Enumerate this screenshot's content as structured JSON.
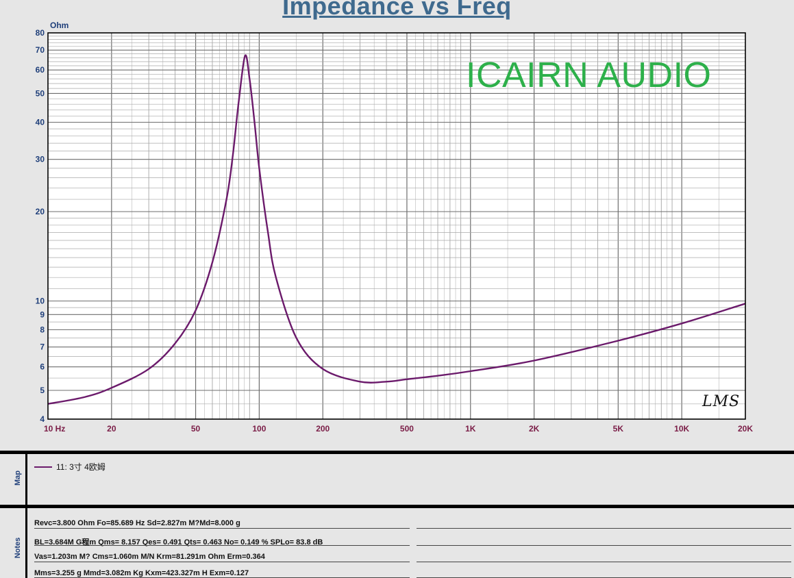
{
  "chart_data": {
    "type": "line",
    "title": "Impedance vs Freq",
    "ylabel": "Ohm",
    "xscale": "log",
    "yscale": "log",
    "xlim": [
      10,
      20000
    ],
    "ylim": [
      4,
      80
    ],
    "grid": true,
    "x_ticks": [
      {
        "value": 10,
        "label": "10  Hz"
      },
      {
        "value": 20,
        "label": "20"
      },
      {
        "value": 50,
        "label": "50"
      },
      {
        "value": 100,
        "label": "100"
      },
      {
        "value": 200,
        "label": "200"
      },
      {
        "value": 500,
        "label": "500"
      },
      {
        "value": 1000,
        "label": "1K"
      },
      {
        "value": 2000,
        "label": "2K"
      },
      {
        "value": 5000,
        "label": "5K"
      },
      {
        "value": 10000,
        "label": "10K"
      },
      {
        "value": 20000,
        "label": "20K"
      }
    ],
    "y_ticks": [
      {
        "value": 80,
        "label": "80"
      },
      {
        "value": 70,
        "label": "70"
      },
      {
        "value": 60,
        "label": "60"
      },
      {
        "value": 50,
        "label": "50"
      },
      {
        "value": 40,
        "label": "40"
      },
      {
        "value": 30,
        "label": "30"
      },
      {
        "value": 20,
        "label": "20"
      },
      {
        "value": 10,
        "label": "10"
      },
      {
        "value": 9,
        "label": "9"
      },
      {
        "value": 8,
        "label": "8"
      },
      {
        "value": 7,
        "label": "7"
      },
      {
        "value": 6,
        "label": "6"
      },
      {
        "value": 5,
        "label": "5"
      },
      {
        "value": 4,
        "label": "4"
      }
    ],
    "series": [
      {
        "name": "11: 3寸 4欧姆",
        "color": "#6b1a6b",
        "x": [
          10,
          15,
          20,
          30,
          40,
          50,
          60,
          70,
          75,
          80,
          85.7,
          90,
          95,
          100,
          110,
          120,
          150,
          200,
          300,
          400,
          500,
          700,
          1000,
          2000,
          5000,
          10000,
          20000
        ],
        "y": [
          4.5,
          4.75,
          5.1,
          5.9,
          7.2,
          9.3,
          13.5,
          22,
          31,
          47,
          67,
          56,
          40,
          28,
          17,
          12,
          7.5,
          5.9,
          5.35,
          5.35,
          5.45,
          5.6,
          5.8,
          6.3,
          7.35,
          8.4,
          9.8
        ]
      }
    ]
  },
  "watermark": "ICAIRN AUDIO",
  "signature_logo": "LMS",
  "panels": {
    "map_label": "Map",
    "notes_label": "Notes"
  },
  "notes": [
    "Revc=3.800 Ohm  Fo=85.689 Hz  Sd=2.827m M?Md=8.000 g",
    "BL=3.684M G程m  Qms= 8.157  Qes= 0.491  Qts= 0.463  No= 0.149 %  SPLo= 83.8 dB",
    "Vas=1.203m M? Cms=1.060m M/N  Krm=81.291m Ohm  Erm=0.364",
    "Mms=3.255 g  Mmd=3.082m Kg  Kxm=423.327m H  Exm=0.127"
  ]
}
